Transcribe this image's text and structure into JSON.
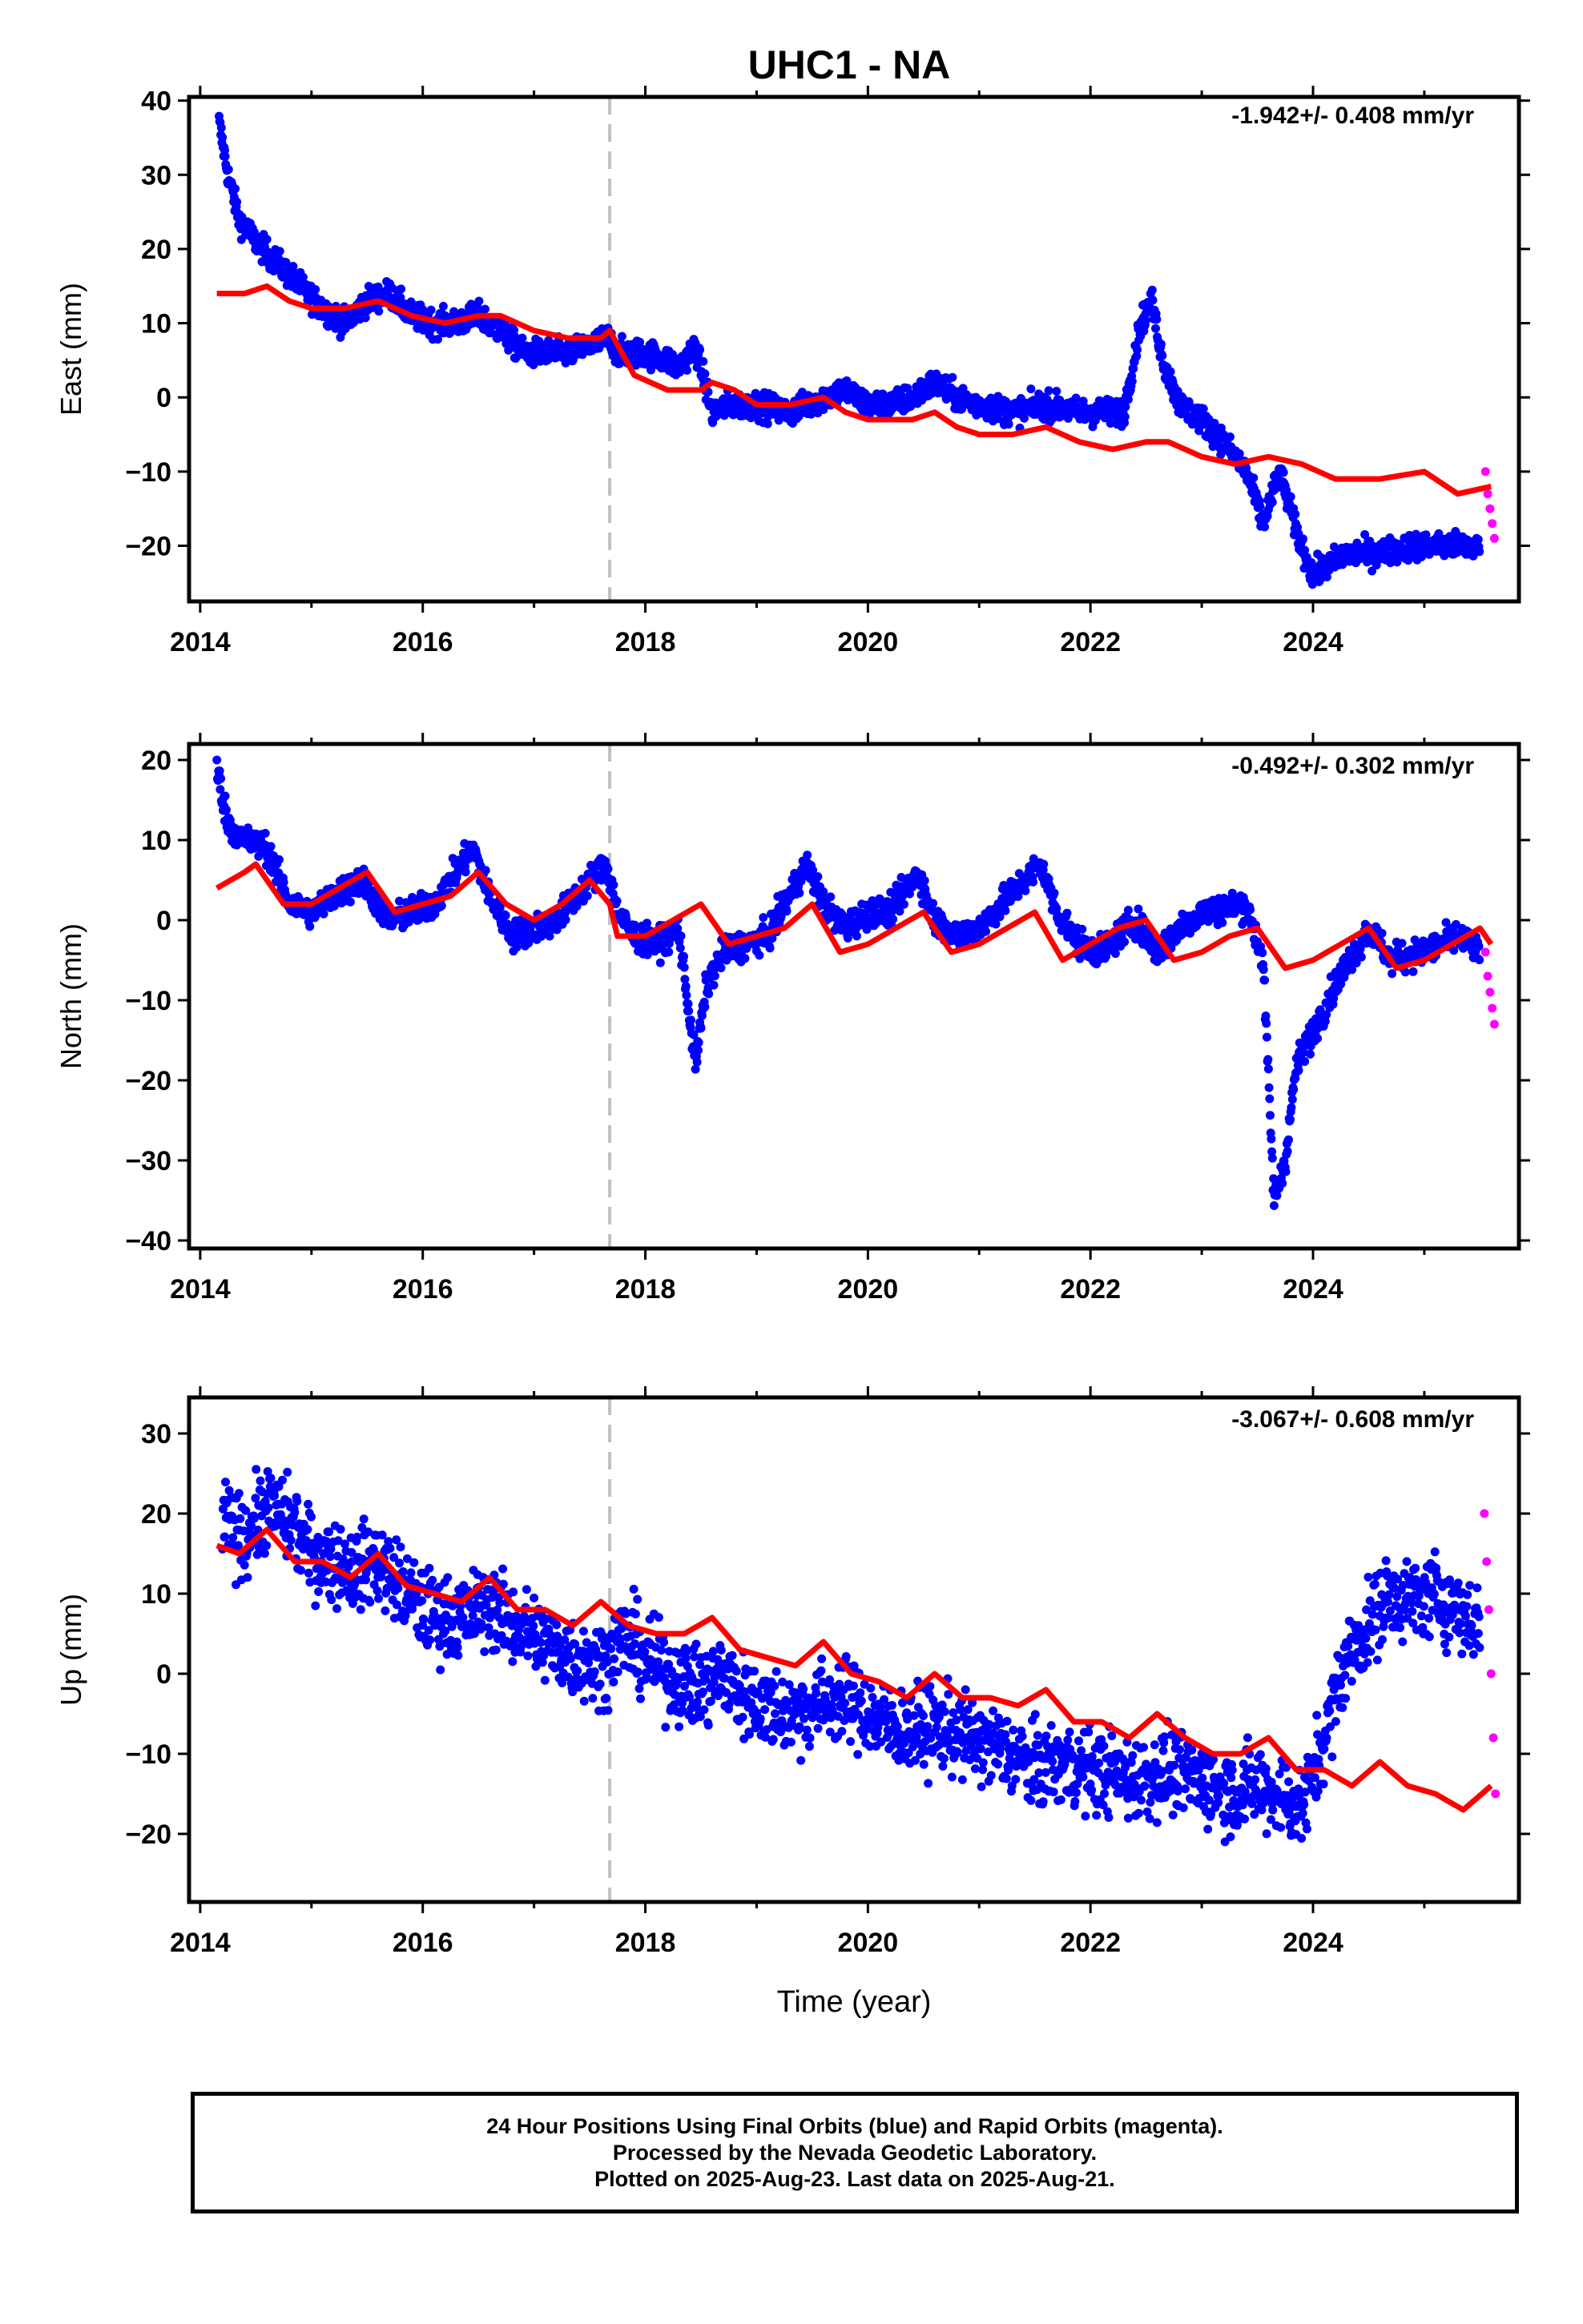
{
  "figure_title": "UHC1 - NA",
  "footer": {
    "line1": "24 Hour Positions Using Final Orbits (blue) and Rapid Orbits (magenta).",
    "line2": "Processed by the Nevada Geodetic Laboratory.",
    "line3": "Plotted on 2025-Aug-23. Last data on 2025-Aug-21."
  },
  "colors": {
    "final": "#0000ff",
    "rapid": "#ff00ff",
    "model": "#ff0000",
    "marker_line": "#c0c0c0",
    "axis": "#000000"
  },
  "chart_data": [
    {
      "type": "scatter",
      "title": "UHC1 - NA",
      "xlabel": "",
      "ylabel": "East (mm)",
      "rate_label": "-1.942+/- 0.408 mm/yr",
      "xlim": [
        2013.9,
        2025.85
      ],
      "ylim": [
        -27.5,
        40.5
      ],
      "xticks": [
        2014,
        2016,
        2018,
        2020,
        2022,
        2024
      ],
      "xtick_labels": [
        "2014",
        "2016",
        "2018",
        "2020",
        "2022",
        "2024"
      ],
      "yticks": [
        40,
        30,
        20,
        10,
        0,
        -10,
        -20
      ],
      "ytick_labels": [
        "40",
        "30",
        "20",
        "10",
        "0",
        "−10",
        "−20"
      ],
      "event_x": 2017.68,
      "grid": false,
      "series": [
        {
          "kind": "final_positions",
          "x": [
            2014.17,
            2014.25,
            2014.35,
            2014.5,
            2014.7,
            2014.9,
            2015.1,
            2015.3,
            2015.5,
            2015.7,
            2015.9,
            2016.1,
            2016.3,
            2016.5,
            2016.7,
            2016.9,
            2017.1,
            2017.3,
            2017.5,
            2017.67,
            2017.75,
            2018.0,
            2018.2,
            2018.3,
            2018.45,
            2018.6,
            2018.75,
            2019.0,
            2019.3,
            2019.6,
            2019.8,
            2020.0,
            2020.2,
            2020.4,
            2020.6,
            2020.8,
            2021.0,
            2021.3,
            2021.6,
            2021.9,
            2022.1,
            2022.3,
            2022.45,
            2022.55,
            2022.65,
            2022.8,
            2023.0,
            2023.2,
            2023.4,
            2023.55,
            2023.7,
            2023.85,
            2024.0,
            2024.3,
            2024.6,
            2024.9,
            2025.2,
            2025.5
          ],
          "y": [
            37,
            30,
            24,
            21,
            18,
            15,
            12,
            10,
            13,
            14,
            11,
            10,
            10,
            11,
            9,
            6,
            6,
            6,
            7,
            8,
            6,
            6,
            5,
            4,
            7,
            -2,
            -1,
            -1,
            -2,
            0,
            1,
            -1,
            -1,
            0,
            2,
            0,
            -1,
            -2,
            -1,
            -2,
            -2,
            -2,
            10,
            13,
            5,
            -1,
            -3,
            -6,
            -10,
            -17,
            -10,
            -18,
            -24,
            -21,
            -21,
            -20,
            -20,
            -20
          ]
        },
        {
          "kind": "rapid_positions",
          "x": [
            2025.55,
            2025.57,
            2025.59,
            2025.61,
            2025.63
          ],
          "y": [
            -10,
            -13,
            -15,
            -17,
            -19
          ]
        },
        {
          "kind": "model_fit",
          "x": [
            2014.15,
            2014.4,
            2014.6,
            2014.8,
            2015.0,
            2015.3,
            2015.6,
            2015.9,
            2016.2,
            2016.5,
            2016.7,
            2017.0,
            2017.3,
            2017.6,
            2017.68,
            2017.9,
            2018.2,
            2018.5,
            2018.6,
            2018.8,
            2019.0,
            2019.3,
            2019.6,
            2019.8,
            2020.0,
            2020.4,
            2020.6,
            2020.8,
            2021.0,
            2021.3,
            2021.6,
            2021.9,
            2022.2,
            2022.5,
            2022.7,
            2023.0,
            2023.3,
            2023.6,
            2023.9,
            2024.2,
            2024.6,
            2025.0,
            2025.3,
            2025.6
          ],
          "y": [
            14,
            14,
            15,
            13,
            12,
            12,
            13,
            11,
            10,
            11,
            11,
            9,
            8,
            8,
            9,
            3,
            1,
            1,
            2,
            1,
            -1,
            -1,
            0,
            -2,
            -3,
            -3,
            -2,
            -4,
            -5,
            -5,
            -4,
            -6,
            -7,
            -6,
            -6,
            -8,
            -9,
            -8,
            -9,
            -11,
            -11,
            -10,
            -13,
            -12
          ]
        }
      ]
    },
    {
      "type": "scatter",
      "title": "",
      "xlabel": "",
      "ylabel": "North (mm)",
      "rate_label": "-0.492+/- 0.302 mm/yr",
      "xlim": [
        2013.9,
        2025.85
      ],
      "ylim": [
        -41,
        22
      ],
      "xticks": [
        2014,
        2016,
        2018,
        2020,
        2022,
        2024
      ],
      "xtick_labels": [
        "2014",
        "2016",
        "2018",
        "2020",
        "2022",
        "2024"
      ],
      "yticks": [
        20,
        10,
        0,
        -10,
        -20,
        -30,
        -40
      ],
      "ytick_labels": [
        "20",
        "10",
        "0",
        "−10",
        "−20",
        "−30",
        "−40"
      ],
      "event_x": 2017.68,
      "grid": false,
      "series": [
        {
          "kind": "final_positions",
          "x": [
            2014.15,
            2014.25,
            2014.4,
            2014.6,
            2014.8,
            2015.0,
            2015.2,
            2015.45,
            2015.7,
            2015.9,
            2016.1,
            2016.45,
            2016.6,
            2016.8,
            2017.0,
            2017.2,
            2017.5,
            2017.65,
            2017.75,
            2017.9,
            2018.1,
            2018.3,
            2018.45,
            2018.55,
            2018.7,
            2018.9,
            2019.1,
            2019.45,
            2019.6,
            2019.8,
            2020.0,
            2020.2,
            2020.45,
            2020.6,
            2020.8,
            2021.0,
            2021.2,
            2021.55,
            2021.7,
            2021.9,
            2022.1,
            2022.4,
            2022.6,
            2022.8,
            2023.0,
            2023.4,
            2023.55,
            2023.65,
            2023.75,
            2023.85,
            2024.0,
            2024.2,
            2024.5,
            2024.7,
            2025.0,
            2025.3,
            2025.5
          ],
          "y": [
            19,
            12,
            10,
            9,
            2,
            1,
            3,
            5,
            0,
            1,
            2,
            9,
            3,
            -2,
            -1,
            0,
            5,
            7,
            1,
            -2,
            -3,
            -1,
            -18,
            -8,
            -4,
            -3,
            -2,
            7,
            2,
            -1,
            1,
            1,
            6,
            0,
            -2,
            -1,
            2,
            7,
            1,
            -3,
            -4,
            0,
            -4,
            -1,
            1,
            2,
            -5,
            -35,
            -30,
            -18,
            -14,
            -8,
            -1,
            -5,
            -4,
            -2,
            -4
          ]
        },
        {
          "kind": "rapid_positions",
          "x": [
            2025.55,
            2025.57,
            2025.59,
            2025.61,
            2025.63
          ],
          "y": [
            -4,
            -7,
            -9,
            -11,
            -13
          ]
        },
        {
          "kind": "model_fit",
          "x": [
            2014.15,
            2014.4,
            2014.5,
            2014.75,
            2015.0,
            2015.25,
            2015.5,
            2015.75,
            2016.0,
            2016.25,
            2016.5,
            2016.75,
            2017.0,
            2017.25,
            2017.5,
            2017.68,
            2017.75,
            2018.0,
            2018.25,
            2018.5,
            2018.75,
            2019.0,
            2019.25,
            2019.5,
            2019.75,
            2020.0,
            2020.25,
            2020.5,
            2020.75,
            2021.0,
            2021.25,
            2021.5,
            2021.75,
            2022.0,
            2022.25,
            2022.5,
            2022.75,
            2023.0,
            2023.25,
            2023.5,
            2023.75,
            2024.0,
            2024.25,
            2024.5,
            2024.75,
            2025.0,
            2025.25,
            2025.5,
            2025.6
          ],
          "y": [
            4,
            6,
            7,
            2,
            2,
            4,
            6,
            1,
            2,
            3,
            6,
            2,
            0,
            2,
            5,
            2,
            -2,
            -2,
            0,
            2,
            -3,
            -2,
            -1,
            2,
            -4,
            -3,
            -1,
            1,
            -4,
            -3,
            -1,
            1,
            -5,
            -3,
            -1,
            0,
            -5,
            -4,
            -2,
            -1,
            -6,
            -5,
            -3,
            -1,
            -6,
            -5,
            -3,
            -1,
            -3
          ]
        }
      ]
    },
    {
      "type": "scatter",
      "title": "",
      "xlabel": "Time (year)",
      "ylabel": "Up (mm)",
      "rate_label": "-3.067+/- 0.608 mm/yr",
      "xlim": [
        2013.9,
        2025.85
      ],
      "ylim": [
        -28.5,
        34.5
      ],
      "xticks": [
        2014,
        2016,
        2018,
        2020,
        2022,
        2024
      ],
      "xtick_labels": [
        "2014",
        "2016",
        "2018",
        "2020",
        "2022",
        "2024"
      ],
      "yticks": [
        30,
        20,
        10,
        0,
        -10,
        -20
      ],
      "ytick_labels": [
        "30",
        "20",
        "10",
        "0",
        "−10",
        "−20"
      ],
      "event_x": 2017.68,
      "grid": false,
      "series": [
        {
          "kind": "final_positions",
          "x": [
            2014.2,
            2014.4,
            2014.6,
            2014.8,
            2015.0,
            2015.2,
            2015.4,
            2015.6,
            2015.8,
            2016.0,
            2016.2,
            2016.4,
            2016.6,
            2016.8,
            2017.0,
            2017.2,
            2017.4,
            2017.6,
            2017.8,
            2018.0,
            2018.2,
            2018.5,
            2018.7,
            2018.9,
            2019.1,
            2019.3,
            2019.5,
            2019.7,
            2019.9,
            2020.1,
            2020.3,
            2020.5,
            2020.7,
            2020.9,
            2021.1,
            2021.3,
            2021.5,
            2021.7,
            2021.9,
            2022.1,
            2022.3,
            2022.5,
            2022.7,
            2022.9,
            2023.1,
            2023.3,
            2023.5,
            2023.7,
            2023.9,
            2024.1,
            2024.3,
            2024.5,
            2024.7,
            2024.9,
            2025.1,
            2025.3,
            2025.5
          ],
          "y": [
            19,
            17,
            21,
            19,
            15,
            14,
            13,
            14,
            11,
            8,
            7,
            7,
            9,
            6,
            5,
            3,
            2,
            1,
            5,
            2,
            0,
            -2,
            0,
            -3,
            -4,
            -5,
            -4,
            -3,
            -4,
            -6,
            -7,
            -7,
            -7,
            -8,
            -9,
            -10,
            -12,
            -11,
            -12,
            -12,
            -13,
            -13,
            -12,
            -13,
            -14,
            -15,
            -14,
            -15,
            -17,
            -8,
            2,
            6,
            10,
            9,
            10,
            8,
            6
          ]
        },
        {
          "kind": "rapid_positions",
          "x": [
            2025.54,
            2025.56,
            2025.58,
            2025.6,
            2025.62,
            2025.64
          ],
          "y": [
            20,
            14,
            8,
            0,
            -8,
            -15
          ]
        },
        {
          "kind": "model_fit",
          "x": [
            2014.15,
            2014.35,
            2014.6,
            2014.85,
            2015.1,
            2015.35,
            2015.6,
            2015.85,
            2016.1,
            2016.35,
            2016.6,
            2016.85,
            2017.1,
            2017.35,
            2017.6,
            2017.85,
            2018.1,
            2018.35,
            2018.6,
            2018.85,
            2019.1,
            2019.35,
            2019.6,
            2019.85,
            2020.1,
            2020.35,
            2020.6,
            2020.85,
            2021.1,
            2021.35,
            2021.6,
            2021.85,
            2022.1,
            2022.35,
            2022.6,
            2022.85,
            2023.1,
            2023.35,
            2023.6,
            2023.85,
            2024.1,
            2024.35,
            2024.6,
            2024.85,
            2025.1,
            2025.35,
            2025.6
          ],
          "y": [
            16,
            15,
            18,
            14,
            14,
            12,
            15,
            11,
            10,
            9,
            12,
            8,
            8,
            6,
            9,
            6,
            5,
            5,
            7,
            3,
            2,
            1,
            4,
            0,
            -1,
            -3,
            0,
            -3,
            -3,
            -4,
            -2,
            -6,
            -6,
            -8,
            -5,
            -8,
            -10,
            -10,
            -8,
            -12,
            -12,
            -14,
            -11,
            -14,
            -15,
            -17,
            -14
          ]
        }
      ]
    }
  ]
}
